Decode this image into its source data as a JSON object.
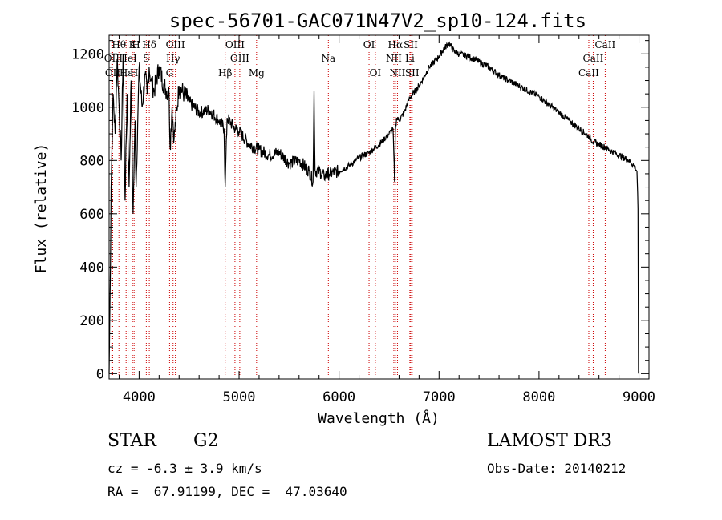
{
  "chart_data": {
    "type": "line",
    "title": "spec-56701-GAC071N47V2_sp10-124.fits",
    "xlabel": "Wavelength (Å)",
    "ylabel": "Flux (relative)",
    "xlim": [
      3700,
      9100
    ],
    "ylim": [
      -20,
      1270
    ],
    "xticks": [
      4000,
      5000,
      6000,
      7000,
      8000,
      9000
    ],
    "yticks": [
      0,
      200,
      400,
      600,
      800,
      1000,
      1200
    ],
    "series": [
      {
        "name": "spectrum",
        "x": [
          3700,
          3710,
          3720,
          3740,
          3760,
          3780,
          3800,
          3820,
          3840,
          3860,
          3880,
          3900,
          3920,
          3940,
          3960,
          3970,
          3990,
          4000,
          4030,
          4060,
          4080,
          4100,
          4120,
          4150,
          4200,
          4250,
          4300,
          4310,
          4330,
          4350,
          4400,
          4450,
          4500,
          4600,
          4700,
          4800,
          4850,
          4861,
          4880,
          4920,
          4960,
          5000,
          5100,
          5200,
          5300,
          5400,
          5500,
          5600,
          5700,
          5740,
          5750,
          5760,
          5800,
          5850,
          5900,
          6000,
          6100,
          6200,
          6300,
          6400,
          6450,
          6500,
          6540,
          6555,
          6563,
          6575,
          6600,
          6650,
          6700,
          6800,
          6900,
          7000,
          7050,
          7100,
          7150,
          7200,
          7300,
          7400,
          7500,
          7600,
          7700,
          7800,
          7900,
          8000,
          8100,
          8200,
          8300,
          8400,
          8500,
          8542,
          8600,
          8662,
          8700,
          8800,
          8900,
          8950,
          8980,
          8990,
          8995
        ],
        "y": [
          0,
          300,
          700,
          1050,
          900,
          1180,
          1000,
          800,
          1200,
          650,
          1050,
          700,
          1100,
          600,
          950,
          700,
          1000,
          1150,
          1000,
          1120,
          1050,
          1150,
          1100,
          1060,
          1150,
          1080,
          1050,
          850,
          1000,
          880,
          1080,
          1050,
          1020,
          980,
          990,
          950,
          920,
          700,
          960,
          940,
          920,
          910,
          860,
          840,
          820,
          830,
          790,
          800,
          760,
          720,
          1060,
          760,
          760,
          740,
          750,
          760,
          780,
          810,
          830,
          860,
          880,
          900,
          920,
          720,
          910,
          960,
          950,
          980,
          1030,
          1080,
          1150,
          1190,
          1220,
          1240,
          1210,
          1200,
          1190,
          1170,
          1150,
          1120,
          1100,
          1080,
          1060,
          1040,
          1010,
          980,
          950,
          920,
          890,
          870,
          860,
          850,
          840,
          820,
          800,
          780,
          760,
          620,
          0
        ]
      }
    ],
    "line_markers": [
      {
        "label": "Hθ",
        "x": 3798,
        "row": 0
      },
      {
        "label": "K",
        "x": 3934,
        "row": 0
      },
      {
        "label": "H",
        "x": 3969,
        "row": 0
      },
      {
        "label": "Hδ",
        "x": 4102,
        "row": 0
      },
      {
        "label": "OIII",
        "x": 4363,
        "row": 0
      },
      {
        "label": "OIII",
        "x": 4959,
        "row": 0
      },
      {
        "label": "OI",
        "x": 6300,
        "row": 0
      },
      {
        "label": "Hα",
        "x": 6563,
        "row": 0
      },
      {
        "label": "SII",
        "x": 6717,
        "row": 0
      },
      {
        "label": "CaII",
        "x": 8662,
        "row": 0
      },
      {
        "label": "OII",
        "x": 3727,
        "row": 1
      },
      {
        "label": "HeI",
        "x": 3889,
        "row": 1
      },
      {
        "label": "S",
        "x": 4072,
        "row": 1
      },
      {
        "label": "Hγ",
        "x": 4340,
        "row": 1
      },
      {
        "label": "OIII",
        "x": 5007,
        "row": 1
      },
      {
        "label": "Na",
        "x": 5893,
        "row": 1
      },
      {
        "label": "NII",
        "x": 6548,
        "row": 1
      },
      {
        "label": "Li",
        "x": 6708,
        "row": 1
      },
      {
        "label": "CaII",
        "x": 8542,
        "row": 1
      },
      {
        "label": "OII",
        "x": 3736,
        "row": 2
      },
      {
        "label": "Hε",
        "x": 3870,
        "row": 2
      },
      {
        "label": "H",
        "x": 3950,
        "row": 2
      },
      {
        "label": "G",
        "x": 4305,
        "row": 2
      },
      {
        "label": "Hβ",
        "x": 4861,
        "row": 2
      },
      {
        "label": "Mg",
        "x": 5175,
        "row": 2
      },
      {
        "label": "OI",
        "x": 6363,
        "row": 2
      },
      {
        "label": "NII",
        "x": 6584,
        "row": 2
      },
      {
        "label": "SII",
        "x": 6731,
        "row": 2
      },
      {
        "label": "CaII",
        "x": 8498,
        "row": 2
      }
    ]
  },
  "info": {
    "object_type": "STAR",
    "subclass": "G2",
    "survey": "LAMOST DR3",
    "cz": "cz = -6.3 ± 3.9 km/s",
    "obs_date": "Obs-Date: 20140212",
    "coords": "RA =  67.91199, DEC =  47.03640"
  },
  "colors": {
    "spectrum": "#000000",
    "marker_line": "#cc0000"
  }
}
